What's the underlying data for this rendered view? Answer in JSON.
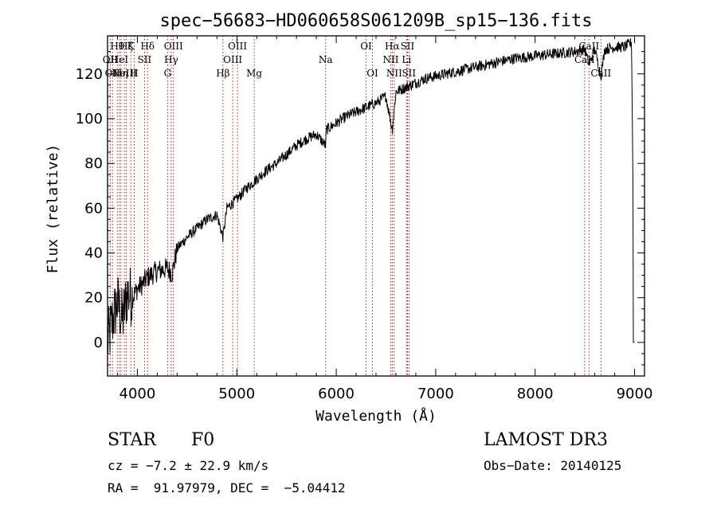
{
  "chart_data": {
    "type": "line",
    "title": "spec−56683−HD060658S061209B_sp15−136.fits",
    "xlabel": "Wavelength (Å)",
    "ylabel": "Flux (relative)",
    "xlim": [
      3700,
      9100
    ],
    "ylim": [
      -15,
      137
    ],
    "xticks": [
      4000,
      5000,
      6000,
      7000,
      8000,
      9000
    ],
    "yticks": [
      0,
      20,
      40,
      60,
      80,
      100,
      120
    ],
    "grid": false,
    "series": [
      {
        "name": "spectrum",
        "x": [
          3700,
          3750,
          3800,
          3850,
          3900,
          3950,
          4000,
          4050,
          4100,
          4200,
          4300,
          4350,
          4400,
          4500,
          4600,
          4700,
          4800,
          4861,
          4900,
          5000,
          5100,
          5200,
          5300,
          5400,
          5500,
          5600,
          5700,
          5800,
          5893,
          5900,
          6000,
          6100,
          6200,
          6300,
          6400,
          6500,
          6563,
          6600,
          6700,
          6800,
          6900,
          7000,
          7200,
          7400,
          7600,
          7800,
          8000,
          8200,
          8400,
          8500,
          8542,
          8600,
          8662,
          8700,
          8800,
          8900,
          8970,
          9000
        ],
        "y": [
          0,
          10,
          18,
          10,
          22,
          20,
          24,
          26,
          29,
          32,
          33,
          31,
          42,
          47,
          51,
          55,
          57,
          47,
          60,
          64,
          69,
          73,
          77,
          80,
          84,
          88,
          91,
          93,
          88,
          95,
          98,
          101,
          103,
          105,
          107,
          110,
          95,
          112,
          114,
          116,
          118,
          119,
          121,
          123,
          125,
          127,
          128,
          129,
          130,
          131,
          124,
          131,
          119,
          131,
          132,
          132,
          134,
          0
        ]
      }
    ],
    "lines": [
      {
        "wl": 3727,
        "label": "OII",
        "row": 2
      },
      {
        "wl": 3750,
        "label": "OII",
        "row": 3
      },
      {
        "wl": 3798,
        "label": "Hθ",
        "row": 1
      },
      {
        "wl": 3820,
        "label": "HeI",
        "row": 2
      },
      {
        "wl": 3835,
        "label": "Hη",
        "row": 3
      },
      {
        "wl": 3869,
        "label": "NeIII",
        "row": 3
      },
      {
        "wl": 3889,
        "label": "Hζ",
        "row": 1
      },
      {
        "wl": 3934,
        "label": "K",
        "row": 1
      },
      {
        "wl": 3969,
        "label": "H",
        "row": 3
      },
      {
        "wl": 4072,
        "label": "SII",
        "row": 2
      },
      {
        "wl": 4102,
        "label": "Hδ",
        "row": 1
      },
      {
        "wl": 4304,
        "label": "G",
        "row": 3
      },
      {
        "wl": 4340,
        "label": "Hγ",
        "row": 2
      },
      {
        "wl": 4363,
        "label": "OIII",
        "row": 1
      },
      {
        "wl": 4861,
        "label": "Hβ",
        "row": 3
      },
      {
        "wl": 4959,
        "label": "OIII",
        "row": 2
      },
      {
        "wl": 5007,
        "label": "OIII",
        "row": 1
      },
      {
        "wl": 5175,
        "label": "Mg",
        "row": 3
      },
      {
        "wl": 5893,
        "label": "Na",
        "row": 2
      },
      {
        "wl": 6300,
        "label": "OI",
        "row": 1
      },
      {
        "wl": 6364,
        "label": "OI",
        "row": 3
      },
      {
        "wl": 6548,
        "label": "NII",
        "row": 2
      },
      {
        "wl": 6563,
        "label": "Hα",
        "row": 1
      },
      {
        "wl": 6583,
        "label": "NII",
        "row": 3
      },
      {
        "wl": 6707,
        "label": "Li",
        "row": 2
      },
      {
        "wl": 6716,
        "label": "SII",
        "row": 1
      },
      {
        "wl": 6731,
        "label": "SII",
        "row": 3
      },
      {
        "wl": 8498,
        "label": "CaII",
        "row": 2
      },
      {
        "wl": 8542,
        "label": "CaII",
        "row": 1
      },
      {
        "wl": 8662,
        "label": "CaII",
        "row": 3
      }
    ]
  },
  "info": {
    "object_class": "STAR",
    "subclass": "F0",
    "survey": "LAMOST DR3",
    "cz": "cz = −7.2 ± 22.9 km/s",
    "obs_date": "Obs−Date: 20140125",
    "coords": "RA =  91.97979, DEC =  −5.04412"
  }
}
